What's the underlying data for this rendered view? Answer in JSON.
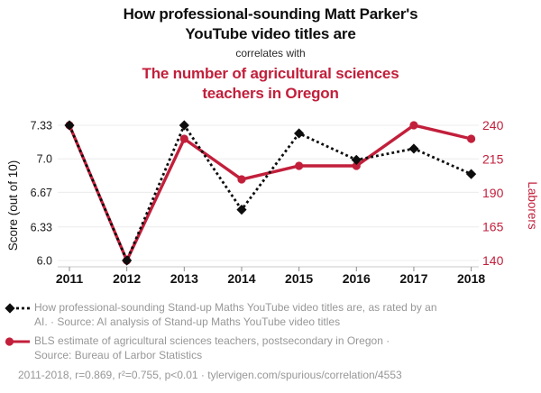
{
  "header": {
    "title_lines": [
      "How professional-sounding Matt Parker's",
      "YouTube video titles are"
    ],
    "connector": "correlates with",
    "subtitle_lines": [
      "The number of agricultural sciences",
      "teachers in Oregon"
    ]
  },
  "colors": {
    "accent_red": "#c21f3b",
    "series_black": "#0d0d0d",
    "legend_gray": "#979797"
  },
  "chart_data": {
    "type": "line",
    "categories": [
      "2011",
      "2012",
      "2013",
      "2014",
      "2015",
      "2016",
      "2017",
      "2018"
    ],
    "series": [
      {
        "name": "How professional-sounding Stand-up Maths YouTube video titles are, as rated by an AI.",
        "axis": "left",
        "color": "#0d0d0d",
        "line_style": "dotted",
        "marker": "diamond",
        "values": [
          7.33,
          6.0,
          7.33,
          6.5,
          7.25,
          6.99,
          7.1,
          6.85
        ]
      },
      {
        "name": "BLS estimate of agricultural sciences teachers, postsecondary in Oregon",
        "axis": "right",
        "color": "#c21f3b",
        "line_style": "solid",
        "marker": "circle",
        "values": [
          240,
          140,
          230,
          200,
          210,
          210,
          240,
          230
        ]
      }
    ],
    "left_axis": {
      "label": "Score (out of 10)",
      "tick_labels": [
        "7.33",
        "7.0",
        "6.67",
        "6.33",
        "6.0"
      ],
      "tick_values": [
        7.33,
        7.0,
        6.67,
        6.33,
        6.0
      ],
      "ylim": [
        6.0,
        7.33
      ],
      "color": "#1a1a1a"
    },
    "right_axis": {
      "label": "Laborers",
      "tick_labels": [
        "240",
        "215",
        "190",
        "165",
        "140"
      ],
      "tick_values": [
        240,
        215,
        190,
        165,
        140
      ],
      "ylim": [
        140,
        240
      ],
      "color": "#c21f3b"
    },
    "grid": "horizontal",
    "legend_position": "bottom"
  },
  "legend": {
    "items": [
      {
        "marker": "black-diamond-dotted-line",
        "lines": [
          "How professional-sounding Stand-up Maths YouTube video titles are, as rated by an",
          "AI. · Source: AI analysis of Stand-up Maths YouTube video titles"
        ]
      },
      {
        "marker": "red-circle-solid-line",
        "lines": [
          "BLS estimate of agricultural sciences teachers, postsecondary in Oregon ·",
          "Source: Bureau of Larbor Statistics"
        ]
      }
    ]
  },
  "footer": {
    "stats": "2011-2018, r=0.869, r²=0.755, p<0.01 · tylervigen.com/spurious/correlation/4553"
  }
}
